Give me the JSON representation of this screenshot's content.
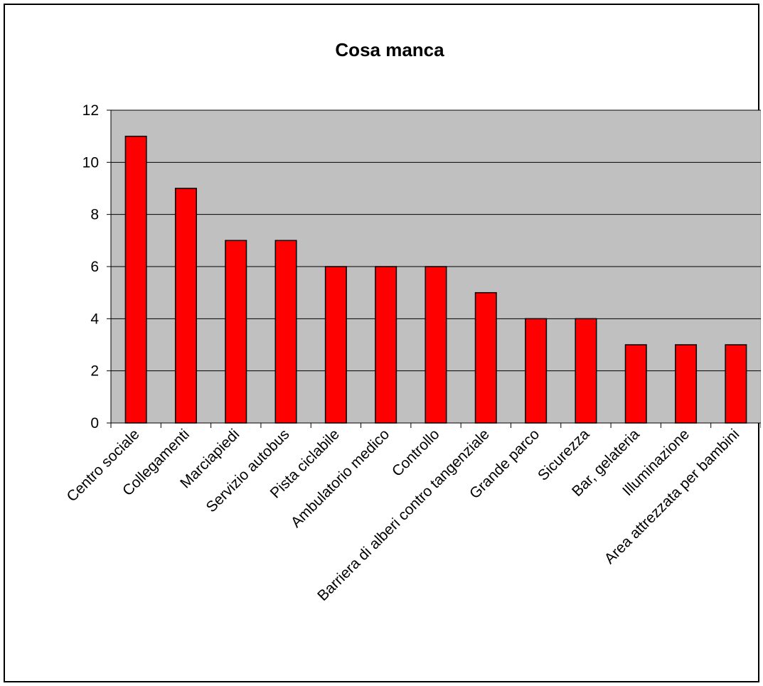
{
  "chart_data": {
    "type": "bar",
    "title": "Cosa manca",
    "xlabel": "",
    "ylabel": "",
    "categories": [
      "Centro sociale",
      "Collegamenti",
      "Marciapiedi",
      "Servizio autobus",
      "Pista ciclabile",
      "Ambulatorio medico",
      "Controllo",
      "Barriera di alberi contro tangenziale",
      "Grande parco",
      "Sicurezza",
      "Bar, gelateria",
      "Illuminazione",
      "Area attrezzata per bambini"
    ],
    "values": [
      11,
      9,
      7,
      7,
      6,
      6,
      6,
      5,
      4,
      4,
      3,
      3,
      3
    ],
    "ylim": [
      0,
      12
    ],
    "yticks": [
      "0",
      "2",
      "4",
      "6",
      "8",
      "10",
      "12"
    ],
    "grid": true,
    "legend": "none",
    "colors": {
      "bar": "#ff0000",
      "plot_background": "#c0c0c0",
      "gridline": "#000000"
    }
  }
}
